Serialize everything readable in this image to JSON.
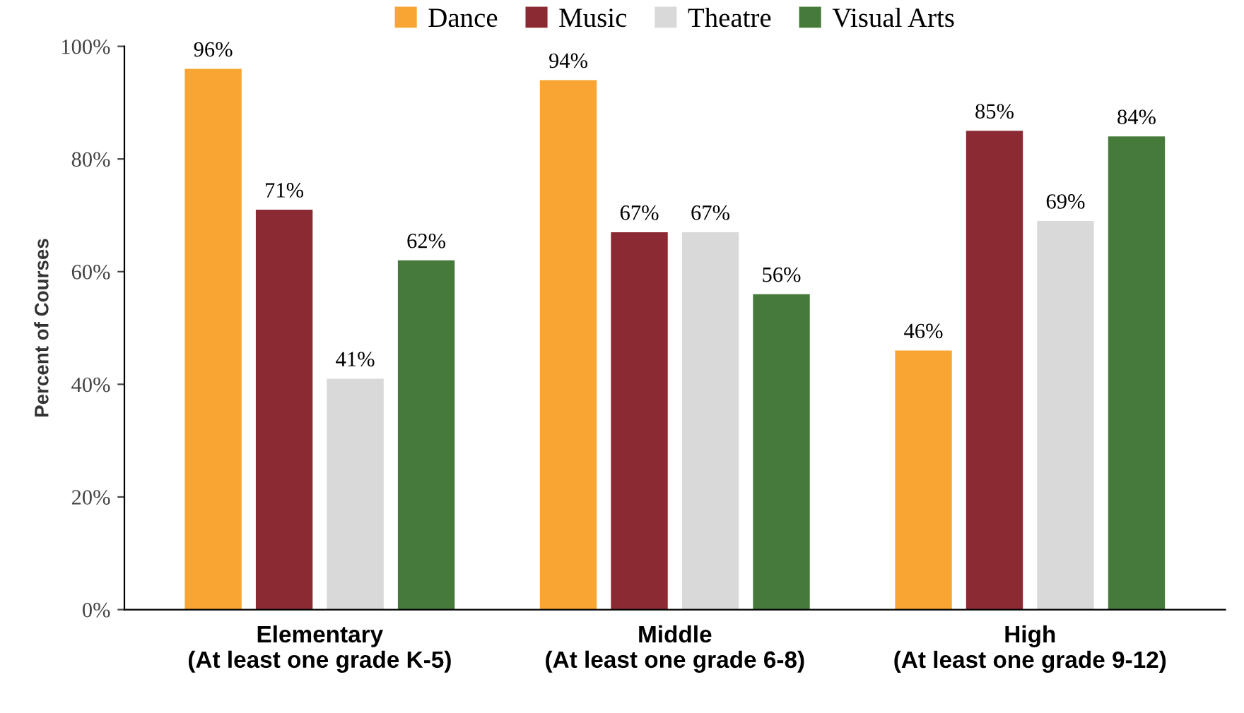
{
  "chart_data": {
    "type": "bar",
    "ylabel": "Percent of Courses",
    "categories": [
      "Elementary\n(At least one grade K-5)",
      "Middle\n(At least one grade 6-8)",
      "High\n(At least one grade 9-12)"
    ],
    "series": [
      {
        "name": "Dance",
        "color": "#f9a533",
        "values": [
          96,
          94,
          46
        ],
        "value_labels": [
          "96%",
          "94%",
          "46%"
        ]
      },
      {
        "name": "Music",
        "color": "#8b2a33",
        "values": [
          71,
          67,
          85
        ],
        "value_labels": [
          "71%",
          "67%",
          "85%"
        ]
      },
      {
        "name": "Theatre",
        "color": "#d9d9d9",
        "values": [
          41,
          67,
          69
        ],
        "value_labels": [
          "41%",
          "67%",
          "69%"
        ]
      },
      {
        "name": "Visual Arts",
        "color": "#467a3a",
        "values": [
          62,
          56,
          84
        ],
        "value_labels": [
          "62%",
          "56%",
          "84%"
        ]
      }
    ],
    "ylim": [
      0,
      100
    ],
    "yticks": [
      {
        "value": 0,
        "label": "0%"
      },
      {
        "value": 20,
        "label": "20%"
      },
      {
        "value": 40,
        "label": "40%"
      },
      {
        "value": 60,
        "label": "60%"
      },
      {
        "value": 80,
        "label": "80%"
      },
      {
        "value": 100,
        "label": "100%"
      }
    ],
    "grid": false,
    "legend": "top"
  }
}
